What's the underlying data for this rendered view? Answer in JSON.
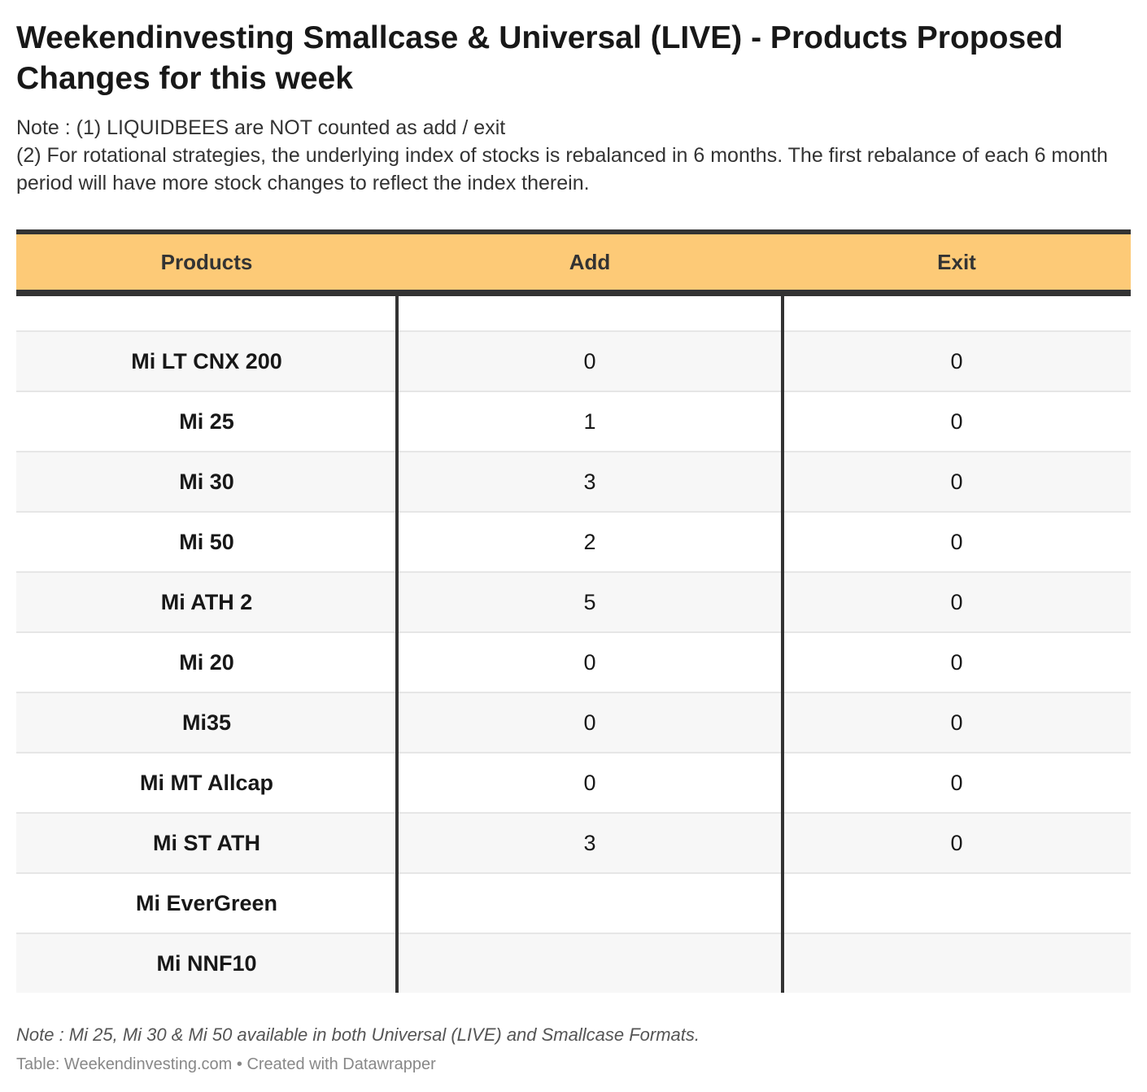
{
  "title": "Weekendinvesting Smallcase & Universal (LIVE) - Products Proposed Changes for this week",
  "notes": [
    "Note : (1) LIQUIDBEES are NOT counted as add / exit",
    "(2) For rotational strategies, the underlying index of stocks is rebalanced in 6 months. The first rebalance of each 6 month period will have more stock changes to reflect the index therein."
  ],
  "colors": {
    "header_bg": "#fdca77",
    "rule": "#333333",
    "row_alt": "#f7f7f7"
  },
  "chart_data": {
    "type": "table",
    "columns": [
      "Products",
      "Add",
      "Exit"
    ],
    "rows": [
      [
        "",
        "",
        ""
      ],
      [
        "Mi LT CNX 200",
        "0",
        "0"
      ],
      [
        "Mi 25",
        "1",
        "0"
      ],
      [
        "Mi 30",
        "3",
        "0"
      ],
      [
        "Mi 50",
        "2",
        "0"
      ],
      [
        "Mi ATH 2",
        "5",
        "0"
      ],
      [
        "Mi 20",
        "0",
        "0"
      ],
      [
        "Mi35",
        "0",
        "0"
      ],
      [
        "Mi MT Allcap",
        "0",
        "0"
      ],
      [
        "Mi ST ATH",
        "3",
        "0"
      ],
      [
        "Mi EverGreen",
        "",
        ""
      ],
      [
        "Mi NNF10",
        "",
        ""
      ]
    ]
  },
  "footnote": "Note : Mi 25, Mi 30 & Mi 50 available in both Universal (LIVE) and Smallcase Formats.",
  "source": "Table: Weekendinvesting.com • Created with Datawrapper"
}
